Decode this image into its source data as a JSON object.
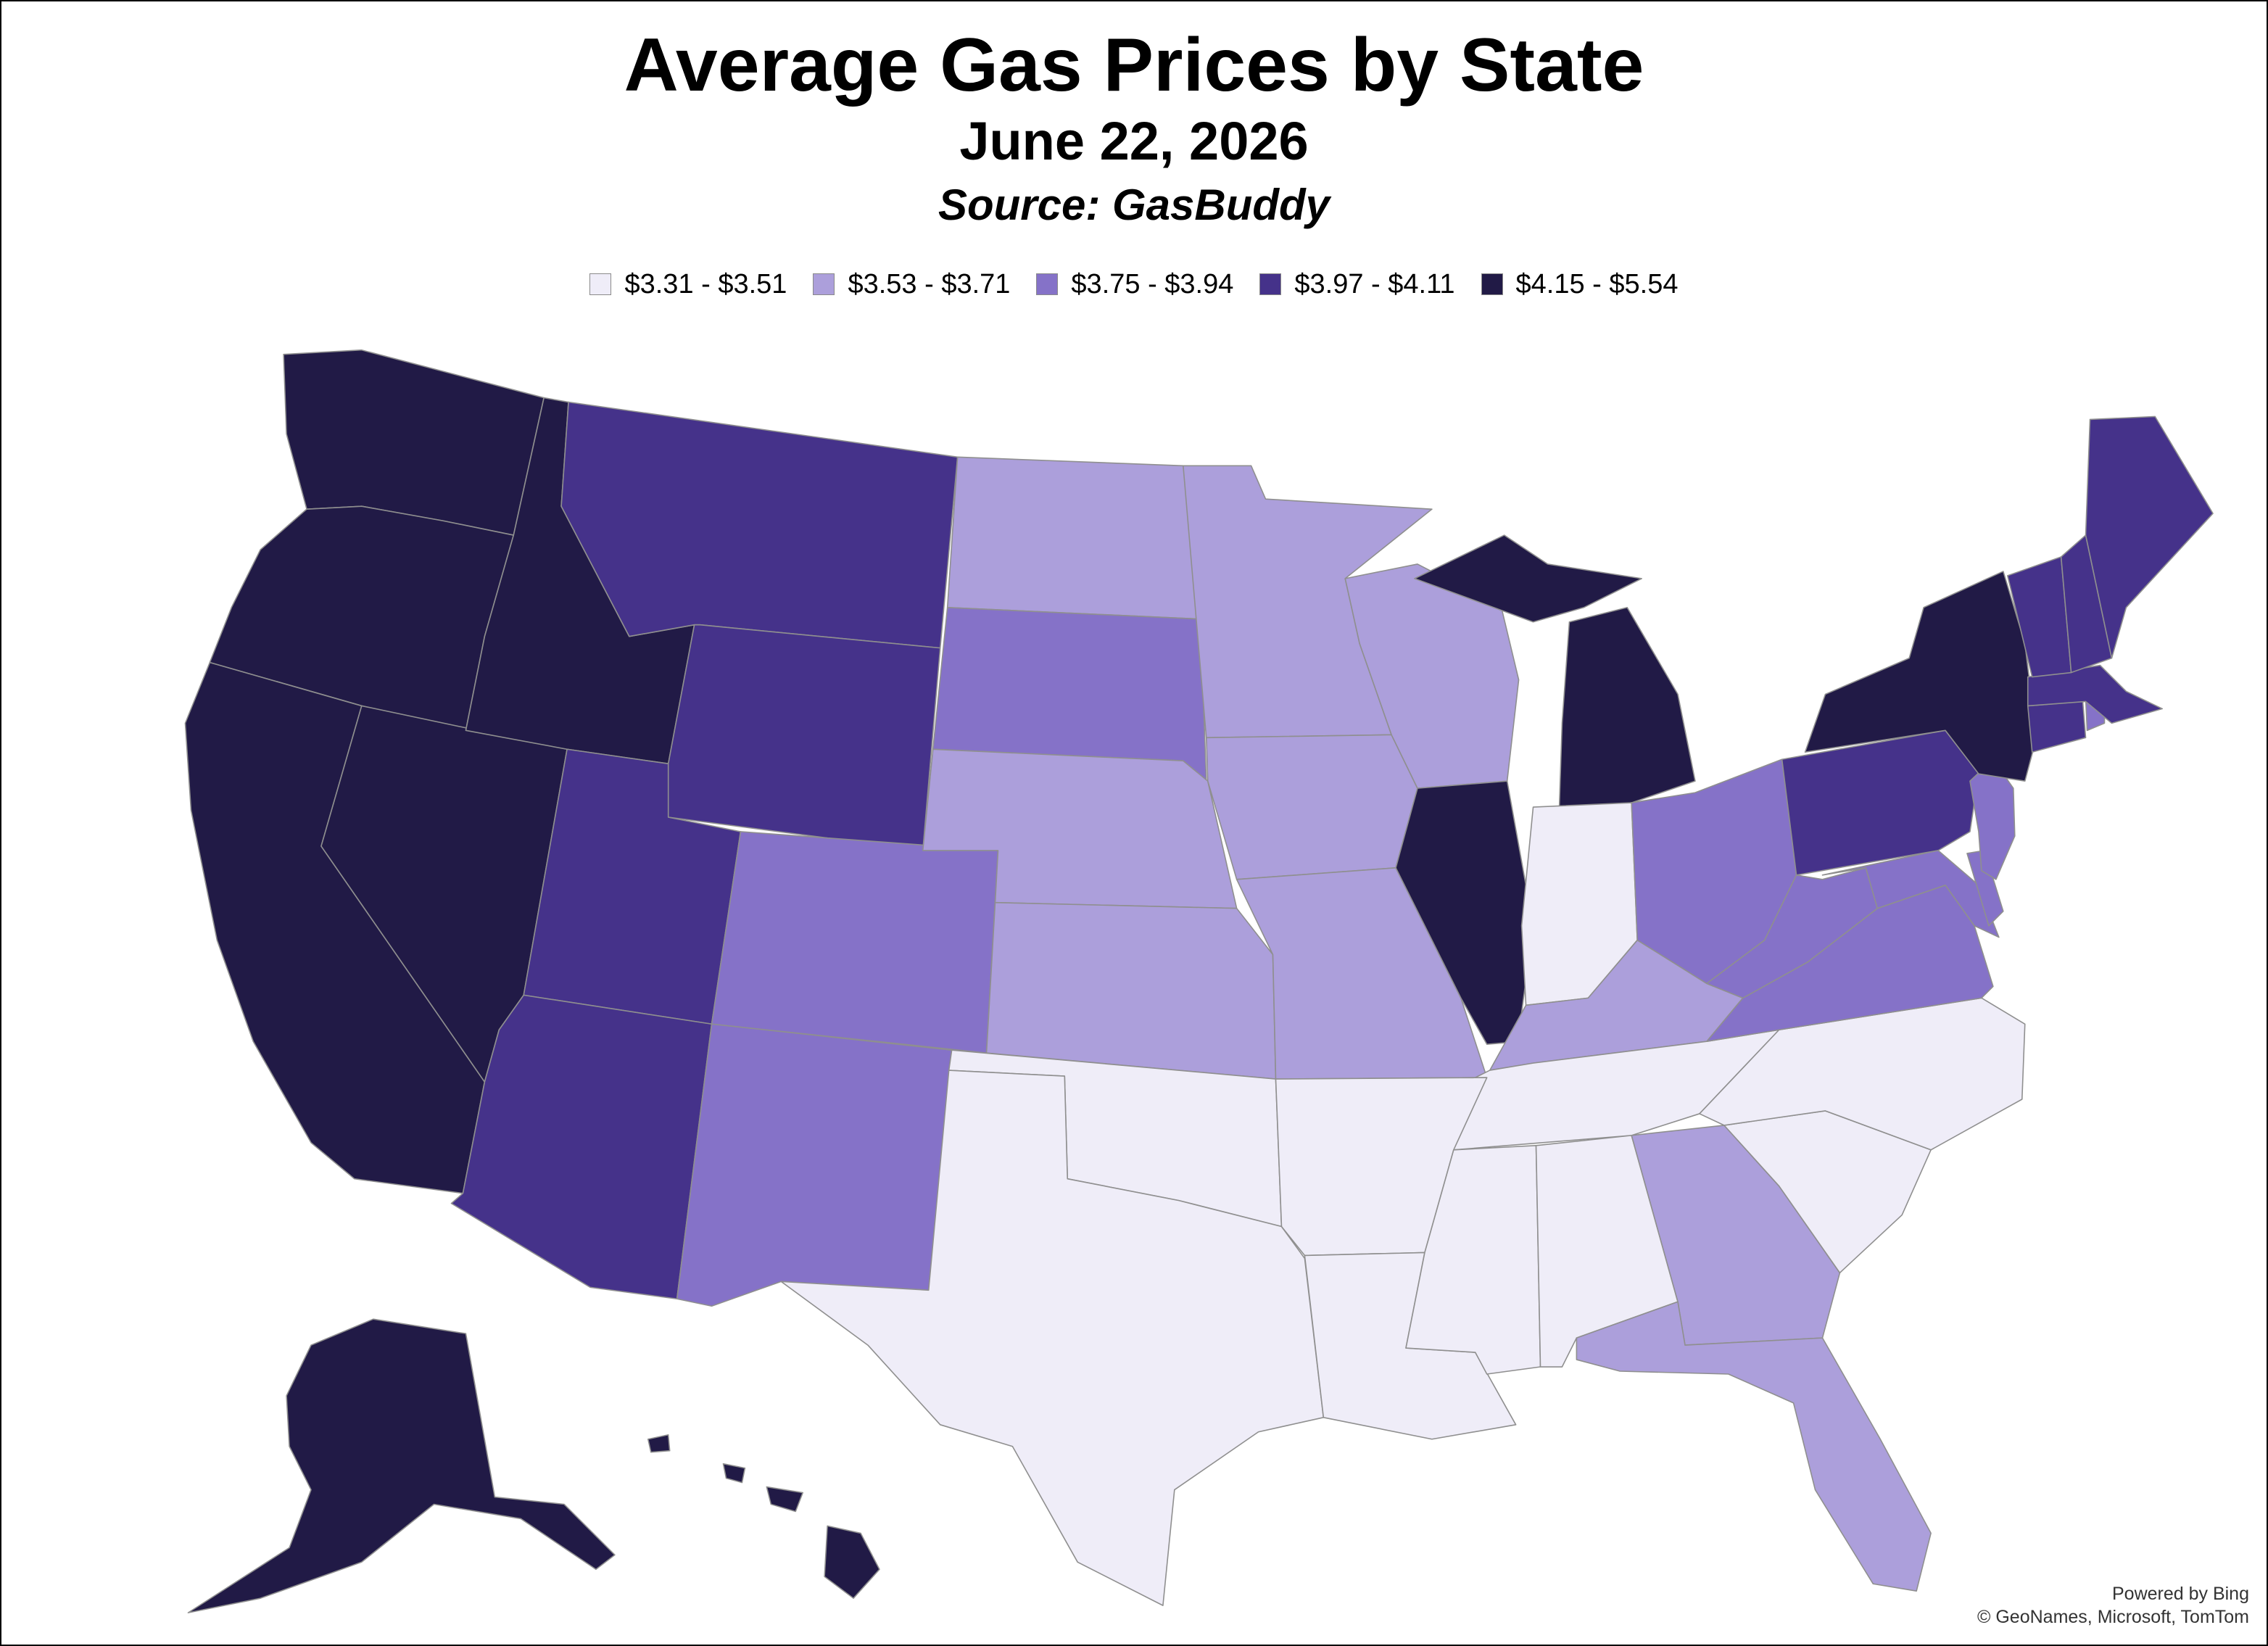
{
  "title": "Average Gas Prices by State",
  "subtitle": "June 22, 2026",
  "source": "Source: GasBuddy",
  "legend": [
    {
      "label": "$3.31 - $3.51",
      "color": "#efedf8"
    },
    {
      "label": "$3.53 - $3.71",
      "color": "#ac9fdb"
    },
    {
      "label": "$3.75 - $3.94",
      "color": "#8572c8"
    },
    {
      "label": "$3.97 - $4.11",
      "color": "#45328a"
    },
    {
      "label": "$4.15 - $5.54",
      "color": "#211a46"
    }
  ],
  "states": {
    "WA": 4,
    "OR": 4,
    "CA": 4,
    "NV": 4,
    "ID": 4,
    "IL": 4,
    "MI": 4,
    "NY": 4,
    "AK": 4,
    "HI": 4,
    "MT": 3,
    "WY": 3,
    "UT": 3,
    "AZ": 3,
    "PA": 3,
    "ME": 3,
    "NH": 3,
    "VT": 3,
    "MA": 3,
    "CT": 3,
    "CO": 2,
    "NM": 2,
    "SD": 2,
    "OH": 2,
    "WV": 2,
    "VA": 2,
    "NJ": 2,
    "MD": 2,
    "DE": 2,
    "RI": 2,
    "ND": 1,
    "MN": 1,
    "WI": 1,
    "IA": 1,
    "NE": 1,
    "KS": 1,
    "MO": 1,
    "KY": 1,
    "GA": 1,
    "FL": 1,
    "TX": 0,
    "OK": 0,
    "AR": 0,
    "LA": 0,
    "MS": 0,
    "AL": 0,
    "TN": 0,
    "NC": 0,
    "SC": 0,
    "IN": 0
  },
  "attribution": {
    "powered": "Powered by Bing",
    "credits": "© GeoNames, Microsoft, TomTom"
  }
}
